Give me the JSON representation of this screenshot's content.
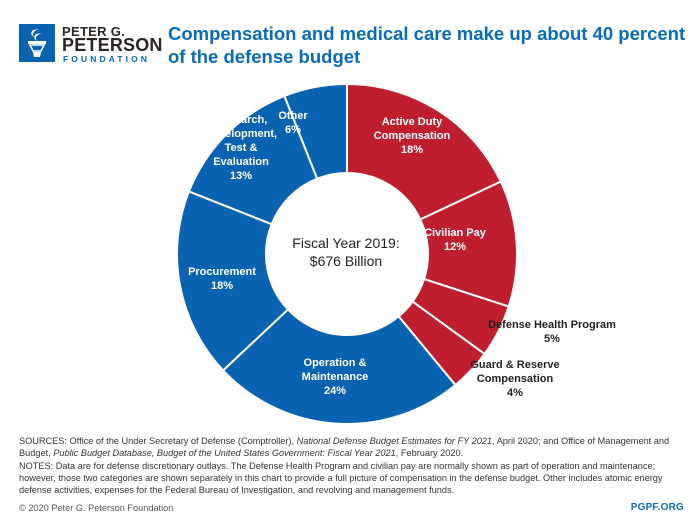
{
  "logo": {
    "line1": "PETER G.",
    "line2": "PETERSON",
    "line3": "FOUNDATION"
  },
  "header": {
    "title": "Compensation and medical care make up about 40 percent of the defense budget"
  },
  "chart_data": {
    "type": "pie",
    "style": "donut",
    "title": "Compensation and medical care make up about 40 percent of the defense budget",
    "center_label": [
      "Fiscal Year 2019:",
      "$676 Billion"
    ],
    "start": "top",
    "direction": "clockwise",
    "unit": "percent",
    "slices": [
      {
        "label": "Active Duty Compensation",
        "label_lines": [
          "Active Duty",
          "Compensation",
          "18%"
        ],
        "value": 18,
        "color": "#be1e2d",
        "label_position": "inside"
      },
      {
        "label": "Civilian Pay",
        "label_lines": [
          "Civilian Pay",
          "12%"
        ],
        "value": 12,
        "color": "#be1e2d",
        "label_position": "inside"
      },
      {
        "label": "Defense Health Program",
        "label_lines": [
          "Defense Health Program",
          "5%"
        ],
        "value": 5,
        "color": "#be1e2d",
        "label_position": "outside"
      },
      {
        "label": "Guard & Reserve Compensation",
        "label_lines": [
          "Guard & Reserve",
          "Compensation",
          "4%"
        ],
        "value": 4,
        "color": "#be1e2d",
        "label_position": "outside"
      },
      {
        "label": "Operation & Maintenance",
        "label_lines": [
          "Operation &",
          "Maintenance",
          "24%"
        ],
        "value": 24,
        "color": "#0a63b0",
        "label_position": "inside"
      },
      {
        "label": "Procurement",
        "label_lines": [
          "Procurement",
          "18%"
        ],
        "value": 18,
        "color": "#0a63b0",
        "label_position": "inside"
      },
      {
        "label": "Research, Development, Test & Evaluation",
        "label_lines": [
          "Research,",
          "Development,",
          "Test &",
          "Evaluation",
          "13%"
        ],
        "value": 13,
        "color": "#0a63b0",
        "label_position": "inside"
      },
      {
        "label": "Other",
        "label_lines": [
          "Other",
          "6%"
        ],
        "value": 6,
        "color": "#0a63b0",
        "label_position": "inside"
      }
    ]
  },
  "footer": {
    "sources_prefix": "SOURCES: Office of the Under Secretary of Defense (Comptroller), ",
    "sources_italic1": "National Defense Budget Estimates for FY 2021",
    "sources_mid": ", April 2020; and Office of Management and Budget, ",
    "sources_italic2": "Public Budget Database, Budget of the United States Government: Fiscal Year 2021",
    "sources_suffix": ", February 2020.",
    "notes": "NOTES: Data are for defense discretionary outlays. The Defense Health Program and civilian pay are normally shown as part of operation and maintenance; however, those two categories are shown separately in this chart to provide a full picture of compensation in the defense budget. Other includes atomic energy defense activities, expenses for the Federal Bureau of Investigation, and revolving and management funds.",
    "copyright": "© 2020 Peter G. Peterson Foundation",
    "site": "PGPF.ORG"
  }
}
